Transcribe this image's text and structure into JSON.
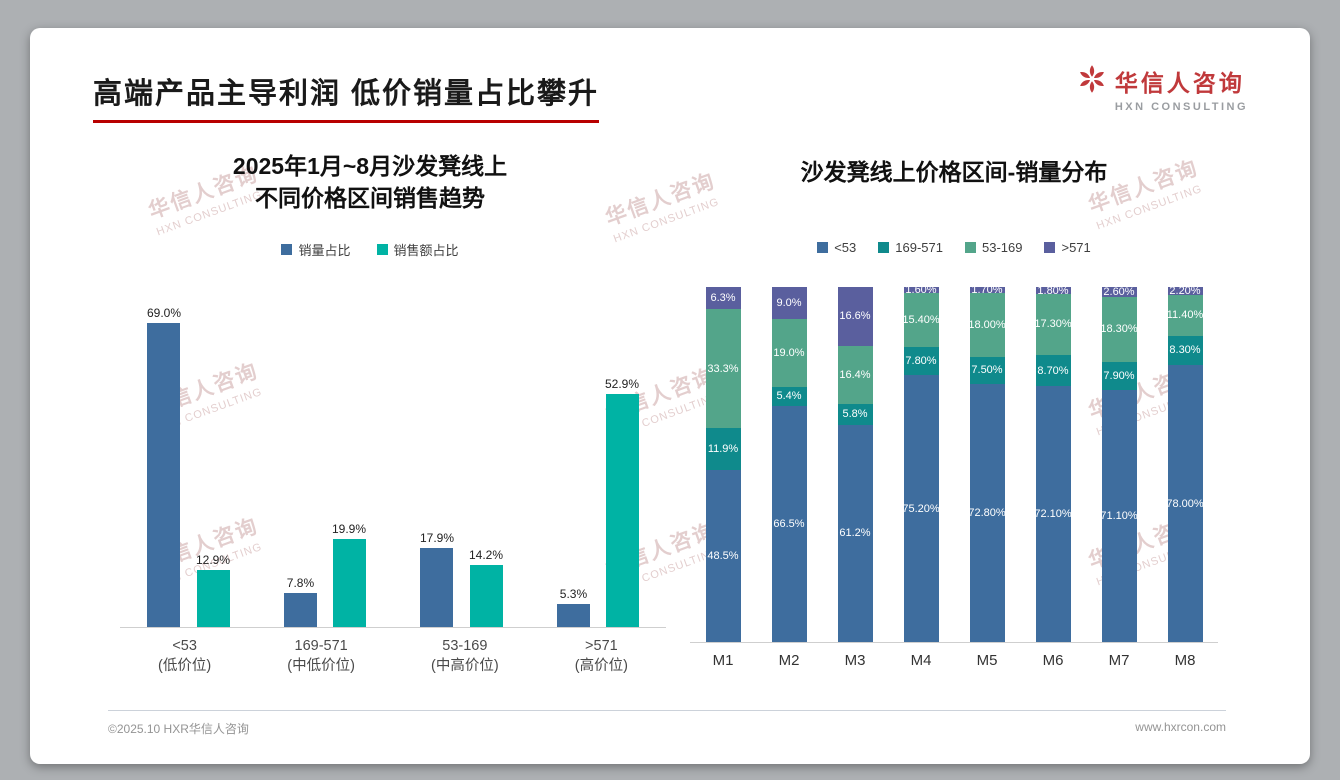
{
  "slide": {
    "title": "高端产品主导利润 低价销量占比攀升",
    "accent_color": "#b80000",
    "logo": {
      "name": "华信人咨询",
      "subtitle": "HXN CONSULTING",
      "color": "#c0393b"
    },
    "watermark": {
      "line1": "华信人咨询",
      "line2": "HXN CONSULTING"
    },
    "footer": {
      "left": "©2025.10 HXR华信人咨询",
      "right": "www.hxrcon.com"
    }
  },
  "chart_data": [
    {
      "type": "bar",
      "title_lines": [
        "2025年1月~8月沙发凳线上",
        "不同价格区间销售趋势"
      ],
      "categories": [
        [
          "<53",
          "(低价位)"
        ],
        [
          "169-571",
          "(中低价位)"
        ],
        [
          "53-169",
          "(中高价位)"
        ],
        [
          ">571",
          "(高价位)"
        ]
      ],
      "series": [
        {
          "name": "销量占比",
          "color": "#3e6d9e",
          "values": [
            69.0,
            7.8,
            17.9,
            5.3
          ],
          "labels": [
            "69.0%",
            "7.8%",
            "17.9%",
            "5.3%"
          ]
        },
        {
          "name": "销售额占比",
          "color": "#00b3a4",
          "values": [
            12.9,
            19.9,
            14.2,
            52.9
          ],
          "labels": [
            "12.9%",
            "19.9%",
            "14.2%",
            "52.9%"
          ]
        }
      ],
      "ylim": [
        0,
        73
      ],
      "grid": false,
      "legend_position": "top"
    },
    {
      "type": "stacked-bar",
      "title": "沙发凳线上价格区间-销量分布",
      "categories": [
        "M1",
        "M2",
        "M3",
        "M4",
        "M5",
        "M6",
        "M7",
        "M8"
      ],
      "series": [
        {
          "name": "<53",
          "color": "#3e6d9e",
          "values": [
            48.5,
            66.5,
            61.2,
            75.2,
            72.8,
            72.1,
            71.1,
            78.0
          ],
          "labels": [
            "48.5%",
            "66.5%",
            "61.2%",
            "75.20%",
            "72.80%",
            "72.10%",
            "71.10%",
            "78.00%"
          ]
        },
        {
          "name": "169-571",
          "color": "#0f8a8c",
          "values": [
            11.9,
            5.4,
            5.8,
            7.8,
            7.5,
            8.7,
            7.9,
            8.3
          ],
          "labels": [
            "11.9%",
            "5.4%",
            "5.8%",
            "7.80%",
            "7.50%",
            "8.70%",
            "7.90%",
            "8.30%"
          ]
        },
        {
          "name": "53-169",
          "color": "#53a58a",
          "values": [
            33.3,
            19.0,
            16.4,
            15.4,
            18.0,
            17.3,
            18.3,
            11.4
          ],
          "labels": [
            "33.3%",
            "19.0%",
            "16.4%",
            "15.40%",
            "18.00%",
            "17.30%",
            "18.30%",
            "11.40%"
          ]
        },
        {
          "name": ">571",
          "color": "#5a5f9e",
          "values": [
            6.3,
            9.0,
            16.6,
            1.6,
            1.7,
            1.8,
            2.6,
            2.2
          ],
          "labels": [
            "6.3%",
            "9.0%",
            "16.6%",
            "1.60%",
            "1.70%",
            "1.80%",
            "2.60%",
            "2.20%"
          ]
        }
      ],
      "ylim": [
        0,
        100
      ],
      "grid": false,
      "legend_position": "top"
    }
  ]
}
